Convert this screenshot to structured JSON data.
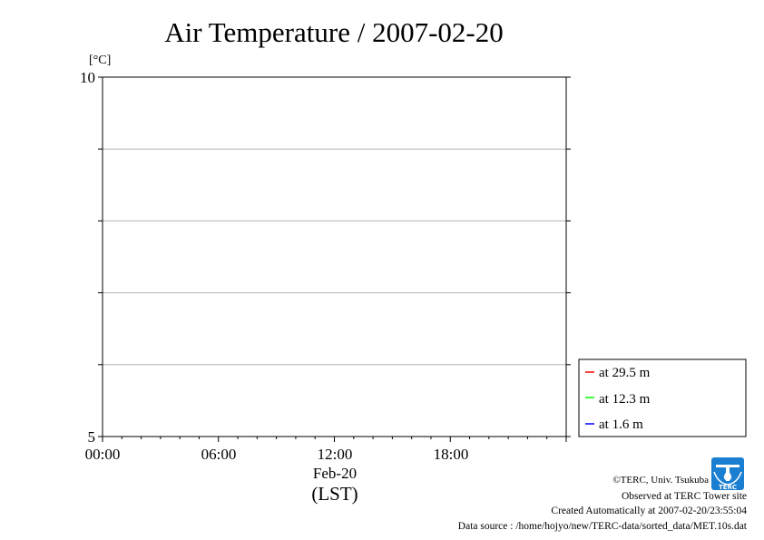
{
  "chart_data": {
    "type": "line",
    "title": "Air Temperature / 2007-02-20",
    "y_unit": "[°C]",
    "ylim": [
      5,
      10
    ],
    "y_tick_labels": [
      "10",
      "5"
    ],
    "y_gridlines": [
      6,
      7,
      8,
      9
    ],
    "grid": "horizontal",
    "x_tick_labels": [
      "00:00",
      "06:00",
      "12:00",
      "18:00"
    ],
    "x_date_label": "Feb-20",
    "xlabel": "(LST)",
    "legend_position": "right-bottom",
    "series": [
      {
        "name": "at 29.5 m",
        "color": "#ff0000",
        "values": []
      },
      {
        "name": "at 12.3 m",
        "color": "#00ff00",
        "values": []
      },
      {
        "name": "at 1.6 m",
        "color": "#0000ff",
        "values": []
      }
    ]
  },
  "footer": {
    "copyright": "©TERC, Univ. Tsukuba",
    "observed": "Observed at TERC Tower site",
    "created": "Created Automatically at 2007-02-20/23:55:04",
    "source": "Data source : /home/hojyo/new/TERC-data/sorted_data/MET.10s.dat"
  },
  "logo": {
    "text": "TERC",
    "icon": "terc-logo-icon",
    "color": "#1a7fd0"
  }
}
